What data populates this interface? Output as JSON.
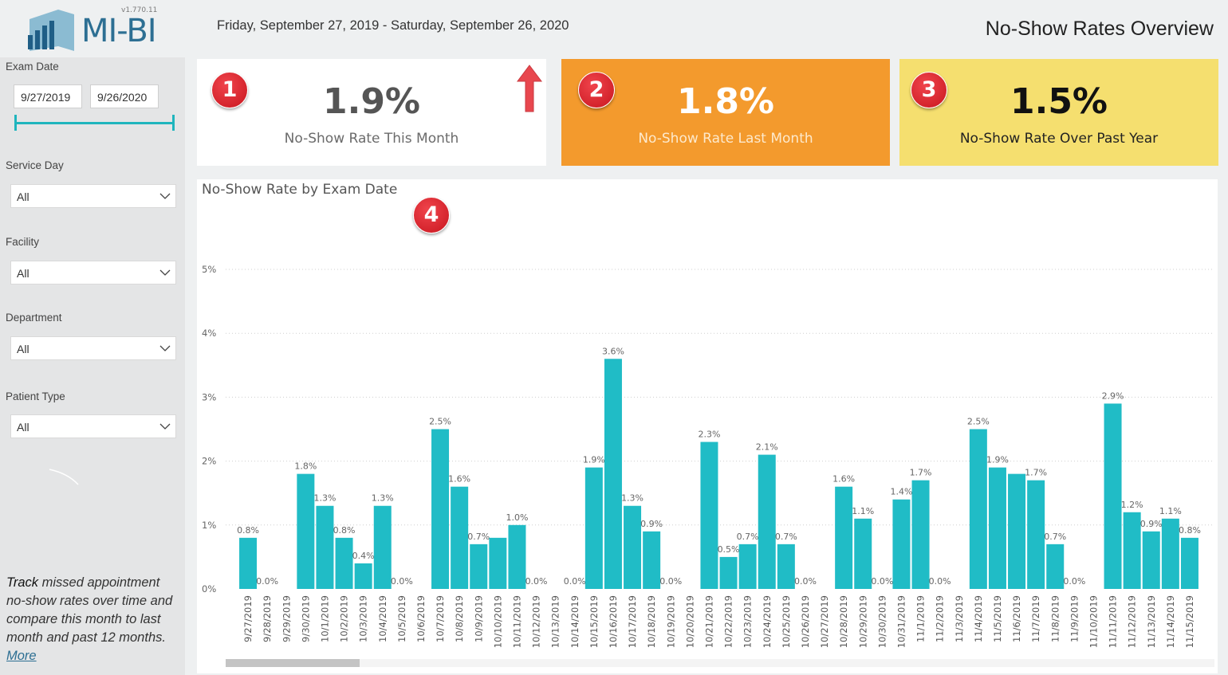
{
  "app": {
    "logo_text": "MI-BI",
    "version": "v1.770.11",
    "date_range_text": "Friday, September 27, 2019 - Saturday, September 26, 2020",
    "page_title": "No-Show Rates Overview"
  },
  "filters": {
    "exam_date": {
      "label": "Exam Date",
      "start": "9/27/2019",
      "end": "9/26/2020"
    },
    "service_day": {
      "label": "Service Day",
      "value": "All"
    },
    "facility": {
      "label": "Facility",
      "value": "All"
    },
    "department": {
      "label": "Department",
      "value": "All"
    },
    "patient_type": {
      "label": "Patient Type",
      "value": "All"
    }
  },
  "description": {
    "lead": "Track",
    "body": " missed appointment no-show rates over time and compare this month to last month and past 12 months. ",
    "link": "More"
  },
  "kpis": [
    {
      "badge": "1",
      "value": "1.9%",
      "label": "No-Show Rate This Month",
      "bg": "#ffffff",
      "value_color": "#555555",
      "label_color": "#6b6b6b"
    },
    {
      "badge": "2",
      "value": "1.8%",
      "label": "No-Show Rate Last Month",
      "bg": "#f39a2d",
      "value_color": "#ffffff",
      "label_color": "#fde9cc"
    },
    {
      "badge": "3",
      "value": "1.5%",
      "label": "No-Show Rate Over Past Year",
      "bg": "#f5df6f",
      "value_color": "#111111",
      "label_color": "#222222"
    }
  ],
  "colors": {
    "bar": "#20bcc6",
    "accent": "#1fb5bd",
    "arrow": "#e8474e"
  },
  "chart_badge": "4",
  "chart_data": {
    "type": "bar",
    "title": "No-Show Rate by Exam Date",
    "xlabel": "",
    "ylabel": "",
    "ylim": [
      0,
      5
    ],
    "y_ticks": [
      "0%",
      "1%",
      "2%",
      "3%",
      "4%",
      "5%"
    ],
    "categories": [
      "9/27/2019",
      "9/28/2019",
      "9/29/2019",
      "9/30/2019",
      "10/1/2019",
      "10/2/2019",
      "10/3/2019",
      "10/4/2019",
      "10/5/2019",
      "10/6/2019",
      "10/7/2019",
      "10/8/2019",
      "10/9/2019",
      "10/10/2019",
      "10/11/2019",
      "10/12/2019",
      "10/13/2019",
      "10/14/2019",
      "10/15/2019",
      "10/16/2019",
      "10/17/2019",
      "10/18/2019",
      "10/19/2019",
      "10/20/2019",
      "10/21/2019",
      "10/22/2019",
      "10/23/2019",
      "10/24/2019",
      "10/25/2019",
      "10/26/2019",
      "10/27/2019",
      "10/28/2019",
      "10/29/2019",
      "10/30/2019",
      "10/31/2019",
      "11/1/2019",
      "11/2/2019",
      "11/3/2019",
      "11/4/2019",
      "11/5/2019",
      "11/6/2019",
      "11/7/2019",
      "11/8/2019",
      "11/9/2019",
      "11/10/2019",
      "11/11/2019",
      "11/12/2019",
      "11/13/2019",
      "11/14/2019",
      "11/15/2019"
    ],
    "values": [
      0.8,
      0.0,
      null,
      1.8,
      1.3,
      0.8,
      0.4,
      1.3,
      0.0,
      null,
      2.5,
      1.6,
      0.7,
      0.8,
      1.0,
      0.0,
      null,
      0.0,
      1.9,
      3.6,
      1.3,
      0.9,
      0.0,
      null,
      2.3,
      0.5,
      0.7,
      2.1,
      0.7,
      0.0,
      null,
      1.6,
      1.1,
      0.0,
      1.4,
      1.7,
      0.0,
      null,
      2.5,
      1.9,
      1.8,
      1.7,
      0.7,
      0.0,
      null,
      2.9,
      1.2,
      0.9,
      1.1,
      0.8
    ],
    "labels": [
      "0.8%",
      "0.0%",
      "",
      "1.8%",
      "1.3%",
      "0.8%",
      "0.4%",
      "1.3%",
      "0.0%",
      "",
      "2.5%",
      "1.6%",
      "0.7%",
      "",
      "1.0%",
      "0.0%",
      "",
      "0.0%",
      "1.9%",
      "3.6%",
      "1.3%",
      "0.9%",
      "0.0%",
      "",
      "2.3%",
      "0.5%",
      "0.7%",
      "2.1%",
      "0.7%",
      "0.0%",
      "",
      "1.6%",
      "1.1%",
      "0.0%",
      "1.4%",
      "1.7%",
      "0.0%",
      "",
      "2.5%",
      "1.9%",
      "",
      "1.7%",
      "0.7%",
      "0.0%",
      "",
      "2.9%",
      "1.2%",
      "0.9%",
      "1.1%",
      "0.8%"
    ]
  }
}
